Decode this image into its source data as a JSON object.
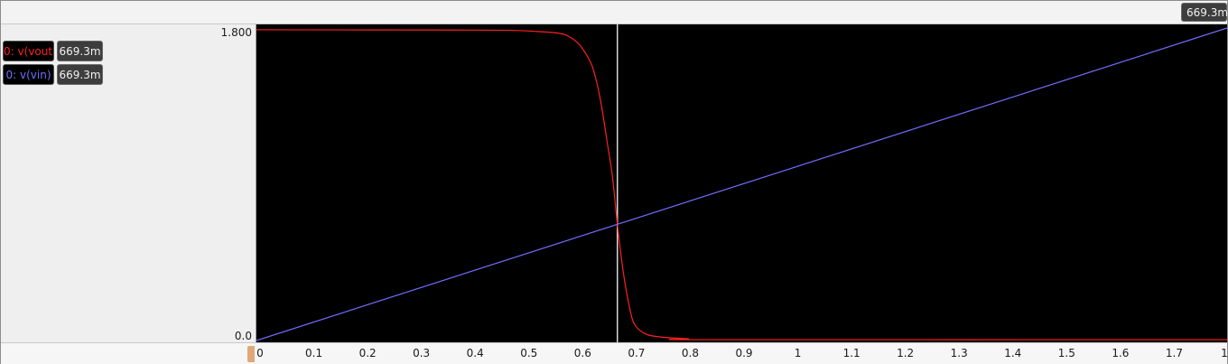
{
  "cursor": {
    "value_label": "669.3m",
    "x_value": 0.6693
  },
  "traces": [
    {
      "label": "0: v(vout)",
      "value": "669.3m",
      "color": "#ff2020"
    },
    {
      "label": "0: v(vin)",
      "value": "669.3m",
      "color": "#6f6fff"
    }
  ],
  "y_axis": {
    "top_label": "1.800",
    "bottom_label": "0.0"
  },
  "x_axis": {
    "tick_labels": [
      "0",
      "0.1",
      "0.2",
      "0.3",
      "0.4",
      "0.5",
      "0.6",
      "0.7",
      "0.8",
      "0.9",
      "1",
      "1.1",
      "1.2",
      "1.3",
      "1.4",
      "1.5",
      "1.6",
      "1.7",
      "1"
    ]
  },
  "chart_data": {
    "type": "line",
    "title": "",
    "xlabel": "",
    "ylabel": "",
    "xlim": [
      0,
      1.8
    ],
    "ylim": [
      0,
      1.8
    ],
    "series": [
      {
        "name": "0: v(vout)",
        "color": "#ff2020",
        "x": [
          0,
          0.4,
          0.48,
          0.52,
          0.56,
          0.58,
          0.6,
          0.62,
          0.63,
          0.64,
          0.65,
          0.66,
          0.6693,
          0.68,
          0.69,
          0.7,
          0.72,
          0.75,
          0.8,
          0.85,
          1.8
        ],
        "y": [
          1.79,
          1.788,
          1.786,
          1.78,
          1.77,
          1.75,
          1.7,
          1.6,
          1.5,
          1.35,
          1.15,
          0.95,
          0.6693,
          0.4,
          0.22,
          0.1,
          0.04,
          0.02,
          0.01,
          0.005,
          0.005
        ]
      },
      {
        "name": "0: v(vin)",
        "color": "#6f6fff",
        "x": [
          0,
          1.8
        ],
        "y": [
          0,
          1.8
        ]
      }
    ]
  }
}
